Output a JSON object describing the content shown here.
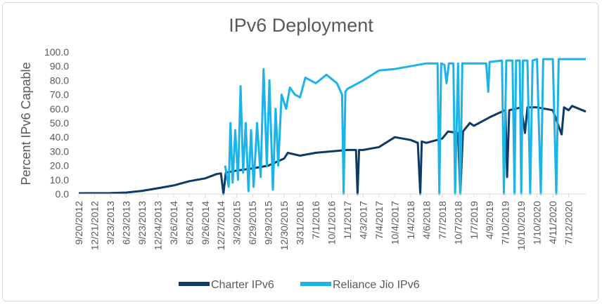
{
  "chart_data": {
    "type": "line",
    "title": "IPv6 Deployment",
    "xlabel": "",
    "ylabel": "Percent IPv6 Capable",
    "ylim": [
      0,
      100
    ],
    "y_ticks": [
      "0.0",
      "10.0",
      "20.0",
      "30.0",
      "40.0",
      "50.0",
      "60.0",
      "70.0",
      "80.0",
      "90.0",
      "100.0"
    ],
    "x_range": [
      "2012-09-20",
      "2020-10-20"
    ],
    "x_tick_labels": [
      "9/20/2012",
      "12/21/2012",
      "3/23/2013",
      "6/23/2013",
      "9/23/2013",
      "12/24/2013",
      "3/26/2014",
      "6/26/2014",
      "9/26/2014",
      "12/27/2014",
      "3/29/2015",
      "6/29/2015",
      "9/29/2015",
      "12/30/2015",
      "3/31/2016",
      "7/1/2016",
      "10/1/2016",
      "1/1/2017",
      "4/3/2017",
      "7/4/2017",
      "10/4/2017",
      "1/4/2018",
      "4/6/2018",
      "7/7/2018",
      "10/7/2018",
      "1/7/2019",
      "4/9/2019",
      "7/10/2019",
      "10/10/2019",
      "1/10/2020",
      "4/11/2020",
      "7/12/2020"
    ],
    "x_tick_dates": [
      "2012-09-20",
      "2012-12-21",
      "2013-03-23",
      "2013-06-23",
      "2013-09-23",
      "2013-12-24",
      "2014-03-26",
      "2014-06-26",
      "2014-09-26",
      "2014-12-27",
      "2015-03-29",
      "2015-06-29",
      "2015-09-29",
      "2015-12-30",
      "2016-03-31",
      "2016-07-01",
      "2016-10-01",
      "2017-01-01",
      "2017-04-03",
      "2017-07-04",
      "2017-10-04",
      "2018-01-04",
      "2018-04-06",
      "2018-07-07",
      "2018-10-07",
      "2019-01-07",
      "2019-04-09",
      "2019-07-10",
      "2019-10-10",
      "2020-01-10",
      "2020-04-11",
      "2020-07-12"
    ],
    "grid": false,
    "legend_position": "bottom",
    "series": [
      {
        "name": "Charter IPv6",
        "color": "#0e3a66",
        "points": [
          [
            "2012-09-20",
            0.5
          ],
          [
            "2013-03-23",
            0.6
          ],
          [
            "2013-06-23",
            1.0
          ],
          [
            "2013-09-23",
            2.2
          ],
          [
            "2013-12-24",
            4.0
          ],
          [
            "2014-03-26",
            6.0
          ],
          [
            "2014-06-26",
            9.0
          ],
          [
            "2014-09-26",
            11.0
          ],
          [
            "2014-12-01",
            14.0
          ],
          [
            "2014-12-27",
            14.5
          ],
          [
            "2015-01-10",
            0.0
          ],
          [
            "2015-01-24",
            15.0
          ],
          [
            "2015-03-29",
            16.5
          ],
          [
            "2015-06-29",
            18.0
          ],
          [
            "2015-09-29",
            20.0
          ],
          [
            "2015-12-30",
            25.0
          ],
          [
            "2016-01-20",
            29.0
          ],
          [
            "2016-03-31",
            27.0
          ],
          [
            "2016-07-01",
            29.0
          ],
          [
            "2016-10-01",
            30.0
          ],
          [
            "2017-01-01",
            31.0
          ],
          [
            "2017-02-20",
            31.0
          ],
          [
            "2017-03-01",
            0.0
          ],
          [
            "2017-03-10",
            31.0
          ],
          [
            "2017-04-03",
            31.0
          ],
          [
            "2017-07-04",
            33.0
          ],
          [
            "2017-10-04",
            40.0
          ],
          [
            "2018-01-04",
            38.0
          ],
          [
            "2018-02-15",
            36.0
          ],
          [
            "2018-03-01",
            0.0
          ],
          [
            "2018-03-10",
            37.0
          ],
          [
            "2018-04-06",
            36.0
          ],
          [
            "2018-07-07",
            39.0
          ],
          [
            "2018-08-10",
            44.0
          ],
          [
            "2018-10-07",
            43.0
          ],
          [
            "2018-10-20",
            0.0
          ],
          [
            "2018-11-05",
            44.0
          ],
          [
            "2018-12-15",
            50.0
          ],
          [
            "2019-01-07",
            48.0
          ],
          [
            "2019-04-09",
            54.0
          ],
          [
            "2019-06-20",
            58.0
          ],
          [
            "2019-07-10",
            59.0
          ],
          [
            "2019-07-20",
            12.0
          ],
          [
            "2019-08-01",
            59.0
          ],
          [
            "2019-10-10",
            61.0
          ],
          [
            "2019-11-01",
            43.0
          ],
          [
            "2019-11-15",
            61.0
          ],
          [
            "2020-01-10",
            61.0
          ],
          [
            "2020-04-11",
            59.0
          ],
          [
            "2020-06-01",
            42.0
          ],
          [
            "2020-06-15",
            61.0
          ],
          [
            "2020-07-12",
            59.0
          ],
          [
            "2020-08-01",
            62.0
          ],
          [
            "2020-10-20",
            58.0
          ]
        ]
      },
      {
        "name": "Reliance Jio IPv6",
        "color": "#1cb4e8",
        "points": [
          [
            "2015-01-20",
            20.0
          ],
          [
            "2015-02-10",
            5.0
          ],
          [
            "2015-02-20",
            50.0
          ],
          [
            "2015-03-05",
            8.0
          ],
          [
            "2015-03-20",
            45.0
          ],
          [
            "2015-04-05",
            10.0
          ],
          [
            "2015-04-20",
            76.0
          ],
          [
            "2015-05-05",
            15.0
          ],
          [
            "2015-05-20",
            50.0
          ],
          [
            "2015-06-05",
            2.0
          ],
          [
            "2015-06-20",
            45.0
          ],
          [
            "2015-07-05",
            5.0
          ],
          [
            "2015-07-25",
            50.0
          ],
          [
            "2015-08-15",
            12.0
          ],
          [
            "2015-09-01",
            88.0
          ],
          [
            "2015-09-20",
            20.0
          ],
          [
            "2015-10-05",
            80.0
          ],
          [
            "2015-10-25",
            3.0
          ],
          [
            "2015-11-10",
            60.0
          ],
          [
            "2015-11-25",
            20.0
          ],
          [
            "2015-12-15",
            70.0
          ],
          [
            "2016-01-10",
            60.0
          ],
          [
            "2016-02-01",
            75.0
          ],
          [
            "2016-03-01",
            70.0
          ],
          [
            "2016-03-31",
            68.0
          ],
          [
            "2016-05-01",
            82.0
          ],
          [
            "2016-07-01",
            78.0
          ],
          [
            "2016-09-01",
            84.0
          ],
          [
            "2016-11-01",
            78.0
          ],
          [
            "2016-12-01",
            70.0
          ],
          [
            "2016-12-10",
            0.0
          ],
          [
            "2016-12-20",
            72.0
          ],
          [
            "2017-01-01",
            74.0
          ],
          [
            "2017-04-03",
            80.0
          ],
          [
            "2017-07-04",
            87.0
          ],
          [
            "2017-10-04",
            88.0
          ],
          [
            "2018-01-04",
            90.0
          ],
          [
            "2018-04-06",
            92.0
          ],
          [
            "2018-06-10",
            92.0
          ],
          [
            "2018-06-20",
            0.0
          ],
          [
            "2018-07-01",
            92.0
          ],
          [
            "2018-07-20",
            91.0
          ],
          [
            "2018-08-01",
            78.0
          ],
          [
            "2018-08-15",
            92.0
          ],
          [
            "2018-09-10",
            92.0
          ],
          [
            "2018-09-20",
            0.0
          ],
          [
            "2018-10-07",
            92.0
          ],
          [
            "2018-10-20",
            0.0
          ],
          [
            "2018-11-01",
            92.0
          ],
          [
            "2019-01-07",
            92.0
          ],
          [
            "2019-03-20",
            92.0
          ],
          [
            "2019-04-01",
            72.0
          ],
          [
            "2019-04-09",
            93.0
          ],
          [
            "2019-06-20",
            94.0
          ],
          [
            "2019-07-01",
            0.0
          ],
          [
            "2019-07-15",
            94.0
          ],
          [
            "2019-08-20",
            94.0
          ],
          [
            "2019-09-01",
            0.0
          ],
          [
            "2019-09-10",
            94.0
          ],
          [
            "2019-10-01",
            94.0
          ],
          [
            "2019-10-10",
            0.0
          ],
          [
            "2019-10-20",
            94.0
          ],
          [
            "2019-11-15",
            94.0
          ],
          [
            "2019-12-01",
            0.0
          ],
          [
            "2019-12-15",
            94.0
          ],
          [
            "2020-01-10",
            95.0
          ],
          [
            "2020-02-01",
            0.0
          ],
          [
            "2020-02-15",
            95.0
          ],
          [
            "2020-04-11",
            95.0
          ],
          [
            "2020-05-01",
            0.0
          ],
          [
            "2020-05-15",
            95.0
          ],
          [
            "2020-07-12",
            95.0
          ],
          [
            "2020-10-20",
            95.0
          ]
        ]
      }
    ]
  }
}
